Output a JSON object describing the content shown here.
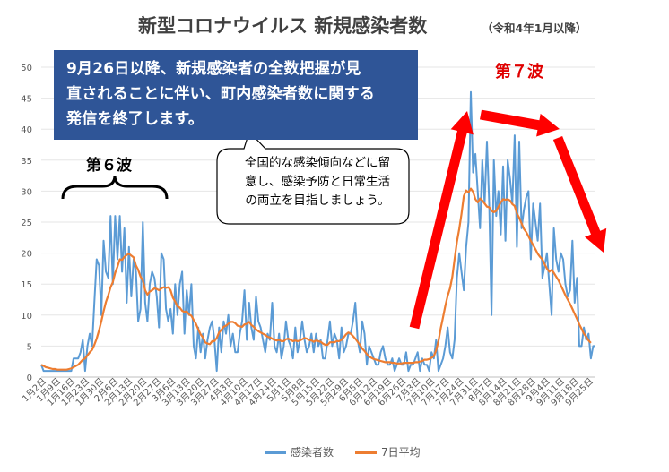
{
  "title": {
    "main": "新型コロナウイルス 新規感染者数",
    "sub": "（令和4年1月以降）"
  },
  "notice": {
    "line1": "9月26日以降、新規感染者の全数把握が見",
    "line2": "直されることに伴い、町内感染者数に関する",
    "line3": "発信を終了します。"
  },
  "bubble": {
    "line1": "全国的な感染傾向などに留",
    "line2": "意し、感染予防と日常生活",
    "line3": "の両立を目指しましょう。"
  },
  "annotations": {
    "wave6": "第６波",
    "wave7": "第７波"
  },
  "colors": {
    "cases": "#5b9bd5",
    "avg": "#ed7d31",
    "arrow": "#ff0000",
    "box": "#2f5597"
  },
  "chart_data": {
    "type": "line",
    "ylim": [
      0,
      50
    ],
    "yticks": [
      0,
      5,
      10,
      15,
      20,
      25,
      30,
      35,
      40,
      45,
      50
    ],
    "xlabels": [
      "1月2日",
      "1月9日",
      "1月16日",
      "1月23日",
      "1月30日",
      "2月6日",
      "2月13日",
      "2月20日",
      "2月27日",
      "3月6日",
      "3月13日",
      "3月20日",
      "3月27日",
      "4月3日",
      "4月10日",
      "4月17日",
      "4月24日",
      "5月1日",
      "5月8日",
      "5月15日",
      "5月22日",
      "5月29日",
      "6月5日",
      "6月12日",
      "6月19日",
      "6月26日",
      "7月3日",
      "7月10日",
      "7月17日",
      "7月24日",
      "7月31日",
      "8月7日",
      "8月14日",
      "8月21日",
      "8月28日",
      "9月4日",
      "9月11日",
      "9月18日",
      "9月25日"
    ],
    "series": [
      {
        "name": "感染者数",
        "values": [
          2,
          1,
          1,
          1,
          1,
          1,
          1,
          1,
          1,
          1,
          1,
          1,
          1,
          1,
          3,
          3,
          3,
          4,
          6,
          1,
          5,
          7,
          5,
          12,
          19,
          18,
          10,
          22,
          17,
          16,
          26,
          15,
          26,
          19,
          26,
          17,
          24,
          12,
          21,
          13,
          19,
          17,
          9,
          11,
          25,
          12,
          9,
          15,
          17,
          16,
          13,
          8,
          20,
          19,
          11,
          9,
          11,
          7,
          15,
          10,
          15,
          17,
          7,
          14,
          10,
          15,
          5,
          3,
          8,
          4,
          7,
          3,
          6,
          8,
          9,
          6,
          1,
          8,
          4,
          9,
          7,
          10,
          5,
          7,
          4,
          4,
          7,
          9,
          14,
          6,
          12,
          8,
          6,
          13,
          9,
          8,
          6,
          4,
          7,
          6,
          12,
          5,
          4,
          7,
          3,
          5,
          9,
          6,
          5,
          3,
          8,
          4,
          6,
          9,
          6,
          4,
          5,
          7,
          4,
          7,
          5,
          6,
          3,
          3,
          6,
          9,
          5,
          7,
          6,
          3,
          8,
          4,
          5,
          7,
          7,
          9,
          12,
          6,
          4,
          9,
          7,
          2,
          5,
          4,
          3,
          2,
          2,
          4,
          5,
          3,
          2,
          2,
          3,
          1,
          2,
          3,
          2,
          2,
          4,
          1,
          2,
          2,
          3,
          4,
          1,
          3,
          2,
          2,
          1,
          4,
          3,
          6,
          1,
          2,
          3,
          5,
          8,
          4,
          3,
          6,
          16,
          20,
          17,
          14,
          21,
          25,
          46,
          33,
          36,
          30,
          24,
          35,
          28,
          38,
          28,
          10,
          35,
          26,
          30,
          23,
          34,
          22,
          35,
          32,
          28,
          39,
          21,
          38,
          24,
          27,
          29,
          30,
          19,
          28,
          25,
          22,
          28,
          16,
          18,
          20,
          15,
          10,
          24,
          19,
          17,
          20,
          19,
          15,
          13,
          14,
          22,
          12,
          16,
          5,
          5,
          8,
          6,
          7,
          3,
          5,
          5
        ]
      },
      {
        "name": "7日平均",
        "values": [
          2,
          1.8,
          1.6,
          1.5,
          1.4,
          1.3,
          1.3,
          1.2,
          1.2,
          1.2,
          1.2,
          1.2,
          1.3,
          1.4,
          1.6,
          1.8,
          2,
          2.4,
          2.8,
          3,
          3.5,
          4,
          4.4,
          5.2,
          6.2,
          7.5,
          9,
          10.6,
          12.1,
          13.2,
          14.5,
          15.3,
          16.8,
          17.8,
          19,
          18.9,
          19.4,
          19.7,
          19.9,
          19.6,
          19.3,
          18,
          17.3,
          16.2,
          15.6,
          14,
          13.3,
          13.8,
          14,
          14.3,
          14.2,
          14,
          14.3,
          14.5,
          14.4,
          14.5,
          14,
          12.8,
          12.2,
          11.4,
          11.2,
          10.7,
          10.5,
          10.6,
          10.1,
          9.9,
          9.2,
          8.6,
          7.7,
          6.9,
          6.4,
          5.6,
          5.4,
          5.3,
          5.8,
          5.8,
          6.3,
          7.2,
          7.6,
          8.1,
          8.3,
          8.6,
          8.9,
          8.9,
          8.7,
          8.3,
          8.2,
          8.1,
          8.5,
          8.6,
          8.9,
          8.4,
          8.1,
          7.7,
          7.4,
          7.2,
          7,
          6.8,
          6.5,
          6.4,
          6.2,
          6,
          5.9,
          6,
          5.8,
          5.8,
          6.1,
          6.2,
          6,
          5.8,
          5.9,
          5.8,
          5.9,
          6.1,
          6.3,
          6.2,
          6,
          5.9,
          5.7,
          5.9,
          5.8,
          5.7,
          5.4,
          5.2,
          5.2,
          5.6,
          5.6,
          5.6,
          5.8,
          5.8,
          6,
          6.4,
          6.9,
          7.2,
          7,
          6.6,
          6.2,
          5.7,
          5.2,
          4.6,
          4.2,
          3.7,
          3.3,
          3.1,
          2.9,
          2.8,
          2.7,
          2.6,
          2.5,
          2.4,
          2.4,
          2.4,
          2.3,
          2.3,
          2.2,
          2.2,
          2.2,
          2.3,
          2.3,
          2.3,
          2.3,
          2.3,
          2.4,
          2.4,
          2.5,
          2.6,
          2.8,
          2.8,
          2.9,
          3.1,
          3.4,
          4.3,
          5.8,
          7.9,
          9.7,
          11.5,
          13.1,
          14.3,
          16.2,
          19,
          21.8,
          23.9,
          26.3,
          29.2,
          30.1,
          29.8,
          30.4,
          29.9,
          28.7,
          28.2,
          28.8,
          28.5,
          28,
          27.5,
          27.4,
          26.8,
          26.6,
          26.8,
          27.5,
          28.2,
          28.7,
          28.6,
          28.7,
          28.5,
          27.9,
          27.6,
          26.4,
          25.7,
          24.8,
          23.9,
          23.4,
          22.7,
          22,
          21.3,
          20.6,
          19.9,
          19.4,
          19,
          18.2,
          17.5,
          17,
          17.3,
          16.8,
          16.2,
          15.6,
          14.8,
          14,
          13.2,
          12.5,
          11.8,
          11,
          10.2,
          9.4,
          8.5,
          7.8,
          7,
          6.5,
          5.9,
          5.5
        ]
      }
    ]
  },
  "legend": {
    "cases_label": "感染者数",
    "avg_label": "7日平均"
  }
}
